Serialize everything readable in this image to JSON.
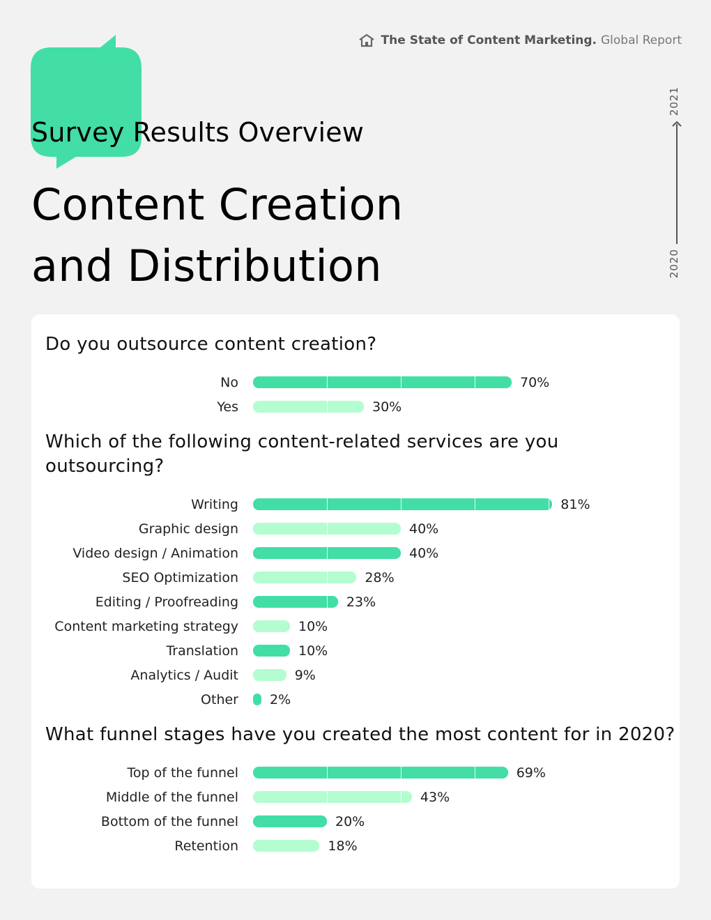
{
  "header": {
    "brand": "The State of Content Marketing.",
    "subtitle": "Global Report",
    "icon": "home-icon"
  },
  "section_label": "Survey Results Overview",
  "title_line1": "Content Creation",
  "title_line2": "and Distribution",
  "timeline": {
    "start": "2020",
    "end": "2021"
  },
  "colors": {
    "dark": "#42dea6",
    "light": "#b3fdd0",
    "accent": "#42dea6"
  },
  "chart_data": [
    {
      "type": "bar",
      "title": "Do you outsource content creation?",
      "categories": [
        "No",
        "Yes"
      ],
      "values": [
        70,
        30
      ],
      "value_labels": [
        "70%",
        "30%"
      ],
      "tones": [
        "dark",
        "light"
      ]
    },
    {
      "type": "bar",
      "title": "Which of the following content-related services are you outsourcing?",
      "categories": [
        "Writing",
        "Graphic design",
        "Video design / Animation",
        "SEO Optimization",
        "Editing / Proofreading",
        "Content marketing strategy",
        "Translation",
        "Analytics / Audit",
        "Other"
      ],
      "values": [
        81,
        40,
        40,
        28,
        23,
        10,
        10,
        9,
        2
      ],
      "value_labels": [
        "81%",
        "40%",
        "40%",
        "28%",
        "23%",
        "10%",
        "10%",
        "9%",
        "2%"
      ],
      "tones": [
        "dark",
        "light",
        "dark",
        "light",
        "dark",
        "light",
        "dark",
        "light",
        "dark"
      ]
    },
    {
      "type": "bar",
      "title": "What funnel stages have you created the most content for in 2020?",
      "categories": [
        "Top of the funnel",
        "Middle of the funnel",
        "Bottom of the funnel",
        "Retention"
      ],
      "values": [
        69,
        43,
        20,
        18
      ],
      "value_labels": [
        "69%",
        "43%",
        "20%",
        "18%"
      ],
      "tones": [
        "dark",
        "light",
        "dark",
        "light"
      ]
    }
  ]
}
